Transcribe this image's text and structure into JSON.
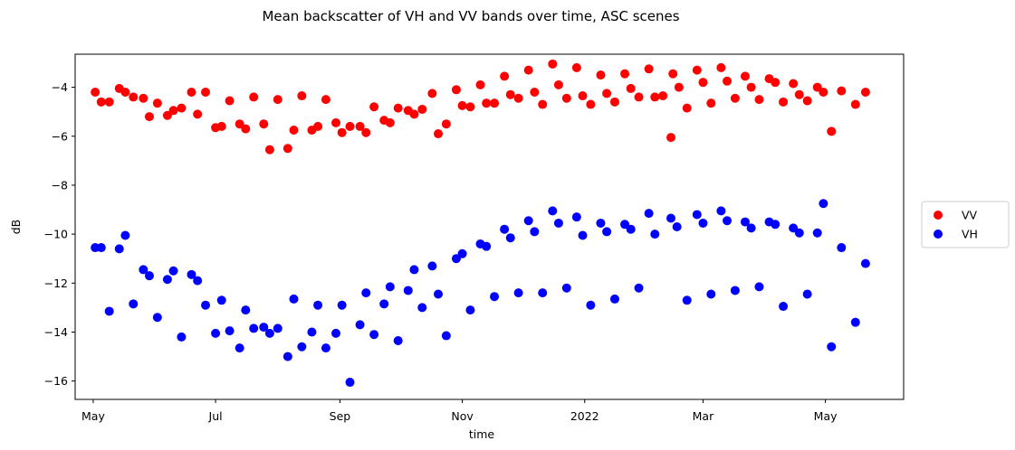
{
  "chart_data": {
    "type": "scatter",
    "title": "Mean backscatter of VH and VV bands over time, ASC scenes",
    "xlabel": "time",
    "ylabel": "dB",
    "x_tick_labels": [
      "May",
      "Jul",
      "Sep",
      "Nov",
      "2022",
      "Mar",
      "May"
    ],
    "x_ticks": [
      "2021-05-01",
      "2021-07-01",
      "2021-09-01",
      "2021-11-01",
      "2022-01-01",
      "2022-03-01",
      "2022-05-01"
    ],
    "xlim": [
      "2021-04-22",
      "2022-06-09"
    ],
    "y_ticks": [
      -16,
      -14,
      -12,
      -10,
      -8,
      -6,
      -4
    ],
    "y_tick_labels": [
      "−16",
      "−14",
      "−12",
      "−10",
      "−8",
      "−6",
      "−4"
    ],
    "ylim": [
      -16.75,
      -2.65
    ],
    "grid": false,
    "legend_position": "right",
    "series": [
      {
        "name": "VV",
        "color": "#ff0000",
        "points": [
          [
            "2021-05-02",
            -4.2
          ],
          [
            "2021-05-05",
            -4.6
          ],
          [
            "2021-05-09",
            -4.6
          ],
          [
            "2021-05-14",
            -4.05
          ],
          [
            "2021-05-17",
            -4.2
          ],
          [
            "2021-05-21",
            -4.4
          ],
          [
            "2021-05-26",
            -4.45
          ],
          [
            "2021-05-29",
            -5.2
          ],
          [
            "2021-06-02",
            -4.65
          ],
          [
            "2021-06-07",
            -5.15
          ],
          [
            "2021-06-10",
            -4.95
          ],
          [
            "2021-06-14",
            -4.85
          ],
          [
            "2021-06-19",
            -4.2
          ],
          [
            "2021-06-22",
            -5.1
          ],
          [
            "2021-06-26",
            -4.2
          ],
          [
            "2021-07-01",
            -5.65
          ],
          [
            "2021-07-04",
            -5.6
          ],
          [
            "2021-07-08",
            -4.55
          ],
          [
            "2021-07-13",
            -5.5
          ],
          [
            "2021-07-16",
            -5.7
          ],
          [
            "2021-07-20",
            -4.4
          ],
          [
            "2021-07-25",
            -5.5
          ],
          [
            "2021-07-28",
            -6.55
          ],
          [
            "2021-08-01",
            -4.5
          ],
          [
            "2021-08-06",
            -6.5
          ],
          [
            "2021-08-09",
            -5.75
          ],
          [
            "2021-08-13",
            -4.35
          ],
          [
            "2021-08-18",
            -5.75
          ],
          [
            "2021-08-21",
            -5.6
          ],
          [
            "2021-08-25",
            -4.5
          ],
          [
            "2021-08-30",
            -5.45
          ],
          [
            "2021-09-02",
            -5.85
          ],
          [
            "2021-09-06",
            -5.6
          ],
          [
            "2021-09-11",
            -5.6
          ],
          [
            "2021-09-14",
            -5.85
          ],
          [
            "2021-09-18",
            -4.8
          ],
          [
            "2021-09-23",
            -5.35
          ],
          [
            "2021-09-26",
            -5.45
          ],
          [
            "2021-09-30",
            -4.85
          ],
          [
            "2021-10-05",
            -4.95
          ],
          [
            "2021-10-08",
            -5.1
          ],
          [
            "2021-10-12",
            -4.9
          ],
          [
            "2021-10-17",
            -4.25
          ],
          [
            "2021-10-20",
            -5.9
          ],
          [
            "2021-10-24",
            -5.5
          ],
          [
            "2021-10-29",
            -4.1
          ],
          [
            "2021-11-01",
            -4.75
          ],
          [
            "2021-11-05",
            -4.8
          ],
          [
            "2021-11-10",
            -3.9
          ],
          [
            "2021-11-13",
            -4.65
          ],
          [
            "2021-11-17",
            -4.65
          ],
          [
            "2021-11-22",
            -3.55
          ],
          [
            "2021-11-25",
            -4.3
          ],
          [
            "2021-11-29",
            -4.45
          ],
          [
            "2021-12-04",
            -3.3
          ],
          [
            "2021-12-07",
            -4.2
          ],
          [
            "2021-12-11",
            -4.7
          ],
          [
            "2021-12-16",
            -3.05
          ],
          [
            "2021-12-19",
            -3.9
          ],
          [
            "2021-12-23",
            -4.45
          ],
          [
            "2021-12-28",
            -3.2
          ],
          [
            "2021-12-31",
            -4.35
          ],
          [
            "2022-01-04",
            -4.7
          ],
          [
            "2022-01-09",
            -3.5
          ],
          [
            "2022-01-12",
            -4.25
          ],
          [
            "2022-01-16",
            -4.6
          ],
          [
            "2022-01-21",
            -3.45
          ],
          [
            "2022-01-24",
            -4.05
          ],
          [
            "2022-01-28",
            -4.4
          ],
          [
            "2022-02-02",
            -3.25
          ],
          [
            "2022-02-05",
            -4.4
          ],
          [
            "2022-02-09",
            -4.35
          ],
          [
            "2022-02-14",
            -3.45
          ],
          [
            "2022-02-17",
            -4.0
          ],
          [
            "2022-02-21",
            -4.85
          ],
          [
            "2022-02-26",
            -3.3
          ],
          [
            "2022-03-01",
            -3.8
          ],
          [
            "2022-03-05",
            -4.65
          ],
          [
            "2022-03-10",
            -3.2
          ],
          [
            "2022-03-13",
            -3.75
          ],
          [
            "2022-03-17",
            -4.45
          ],
          [
            "2022-03-22",
            -3.55
          ],
          [
            "2022-03-25",
            -4.0
          ],
          [
            "2022-03-29",
            -4.5
          ],
          [
            "2022-04-03",
            -3.65
          ],
          [
            "2022-04-06",
            -3.8
          ],
          [
            "2022-04-10",
            -4.6
          ],
          [
            "2022-04-15",
            -3.85
          ],
          [
            "2022-04-18",
            -4.3
          ],
          [
            "2022-04-22",
            -4.55
          ],
          [
            "2022-04-27",
            -4.0
          ],
          [
            "2022-04-30",
            -4.2
          ],
          [
            "2022-05-04",
            -5.8
          ],
          [
            "2022-05-09",
            -4.15
          ],
          [
            "2022-05-16",
            -4.7
          ],
          [
            "2022-05-21",
            -4.2
          ],
          [
            "2022-02-13",
            -6.05
          ]
        ]
      },
      {
        "name": "VH",
        "color": "#0000ff",
        "points": [
          [
            "2021-05-02",
            -10.55
          ],
          [
            "2021-05-05",
            -10.55
          ],
          [
            "2021-05-09",
            -13.15
          ],
          [
            "2021-05-14",
            -10.6
          ],
          [
            "2021-05-17",
            -10.05
          ],
          [
            "2021-05-21",
            -12.85
          ],
          [
            "2021-05-26",
            -11.45
          ],
          [
            "2021-05-29",
            -11.7
          ],
          [
            "2021-06-02",
            -13.4
          ],
          [
            "2021-06-07",
            -11.85
          ],
          [
            "2021-06-10",
            -11.5
          ],
          [
            "2021-06-14",
            -14.2
          ],
          [
            "2021-06-19",
            -11.65
          ],
          [
            "2021-06-22",
            -11.9
          ],
          [
            "2021-06-26",
            -12.9
          ],
          [
            "2021-07-01",
            -14.05
          ],
          [
            "2021-07-04",
            -12.7
          ],
          [
            "2021-07-08",
            -13.95
          ],
          [
            "2021-07-13",
            -14.65
          ],
          [
            "2021-07-16",
            -13.1
          ],
          [
            "2021-07-20",
            -13.85
          ],
          [
            "2021-07-25",
            -13.8
          ],
          [
            "2021-07-28",
            -14.05
          ],
          [
            "2021-08-01",
            -13.85
          ],
          [
            "2021-08-06",
            -15.0
          ],
          [
            "2021-08-09",
            -12.65
          ],
          [
            "2021-08-13",
            -14.6
          ],
          [
            "2021-08-18",
            -14.0
          ],
          [
            "2021-08-21",
            -12.9
          ],
          [
            "2021-08-25",
            -14.65
          ],
          [
            "2021-08-30",
            -14.05
          ],
          [
            "2021-09-02",
            -12.9
          ],
          [
            "2021-09-06",
            -16.05
          ],
          [
            "2021-09-11",
            -13.7
          ],
          [
            "2021-09-14",
            -12.4
          ],
          [
            "2021-09-18",
            -14.1
          ],
          [
            "2021-09-23",
            -12.85
          ],
          [
            "2021-09-26",
            -12.15
          ],
          [
            "2021-09-30",
            -14.35
          ],
          [
            "2021-10-05",
            -12.3
          ],
          [
            "2021-10-08",
            -11.45
          ],
          [
            "2021-10-12",
            -13.0
          ],
          [
            "2021-10-17",
            -11.3
          ],
          [
            "2021-10-20",
            -12.45
          ],
          [
            "2021-10-24",
            -14.15
          ],
          [
            "2021-10-29",
            -11.0
          ],
          [
            "2021-11-01",
            -10.8
          ],
          [
            "2021-11-05",
            -13.1
          ],
          [
            "2021-11-10",
            -10.4
          ],
          [
            "2021-11-13",
            -10.5
          ],
          [
            "2021-11-17",
            -12.55
          ],
          [
            "2021-11-22",
            -9.8
          ],
          [
            "2021-11-25",
            -10.15
          ],
          [
            "2021-11-29",
            -12.4
          ],
          [
            "2021-12-04",
            -9.45
          ],
          [
            "2021-12-07",
            -9.9
          ],
          [
            "2021-12-11",
            -12.4
          ],
          [
            "2021-12-16",
            -9.05
          ],
          [
            "2021-12-19",
            -9.55
          ],
          [
            "2021-12-23",
            -12.2
          ],
          [
            "2021-12-28",
            -9.3
          ],
          [
            "2021-12-31",
            -10.05
          ],
          [
            "2022-01-04",
            -12.9
          ],
          [
            "2022-01-09",
            -9.55
          ],
          [
            "2022-01-12",
            -9.9
          ],
          [
            "2022-01-16",
            -12.65
          ],
          [
            "2022-01-21",
            -9.6
          ],
          [
            "2022-01-24",
            -9.8
          ],
          [
            "2022-01-28",
            -12.2
          ],
          [
            "2022-02-02",
            -9.15
          ],
          [
            "2022-02-05",
            -10.0
          ],
          [
            "2022-02-13",
            -9.35
          ],
          [
            "2022-02-16",
            -9.7
          ],
          [
            "2022-02-21",
            -12.7
          ],
          [
            "2022-02-26",
            -9.2
          ],
          [
            "2022-03-01",
            -9.55
          ],
          [
            "2022-03-05",
            -12.45
          ],
          [
            "2022-03-10",
            -9.05
          ],
          [
            "2022-03-13",
            -9.45
          ],
          [
            "2022-03-17",
            -12.3
          ],
          [
            "2022-03-22",
            -9.5
          ],
          [
            "2022-03-25",
            -9.75
          ],
          [
            "2022-03-29",
            -12.15
          ],
          [
            "2022-04-03",
            -9.5
          ],
          [
            "2022-04-06",
            -9.6
          ],
          [
            "2022-04-10",
            -12.95
          ],
          [
            "2022-04-15",
            -9.75
          ],
          [
            "2022-04-18",
            -9.95
          ],
          [
            "2022-04-22",
            -12.45
          ],
          [
            "2022-04-27",
            -9.95
          ],
          [
            "2022-04-30",
            -8.75
          ],
          [
            "2022-05-04",
            -14.6
          ],
          [
            "2022-05-09",
            -10.55
          ],
          [
            "2022-05-16",
            -13.6
          ],
          [
            "2022-05-21",
            -11.2
          ]
        ]
      }
    ]
  }
}
